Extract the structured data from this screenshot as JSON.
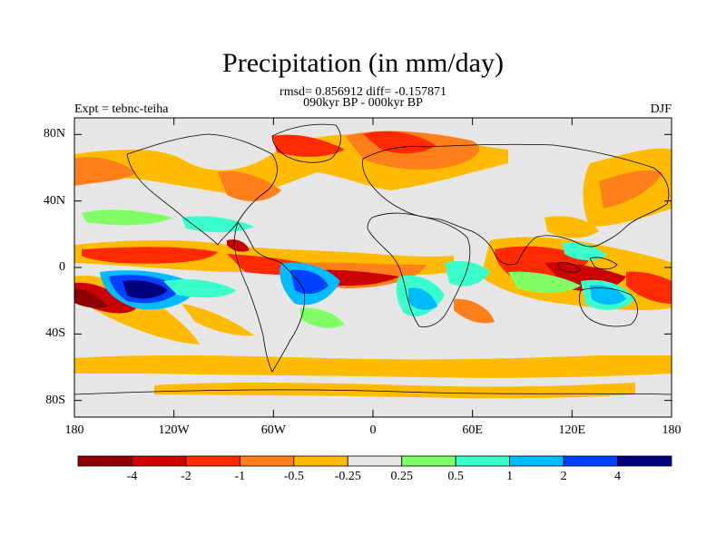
{
  "map": {
    "title": "Precipitation (in mm/day)",
    "stats_line": "rmsd= 0.856912 diff= -0.157871",
    "period_line": "090kyr BP - 000kyr BP",
    "experiment_label": "Expt = tebnc-teiha",
    "season_label": "DJF",
    "lat_ticks": [
      "80N",
      "40N",
      "0",
      "40S",
      "80S"
    ],
    "lat_values": [
      80,
      40,
      0,
      -40,
      -80
    ],
    "lon_ticks": [
      "180",
      "120W",
      "60W",
      "0",
      "60E",
      "120E",
      "180"
    ],
    "lon_values": [
      -180,
      -120,
      -60,
      0,
      60,
      120,
      180
    ],
    "lat_range": [
      -90,
      90
    ],
    "lon_range": [
      -180,
      180
    ]
  },
  "colorbar": {
    "colors": [
      "#8b0000",
      "#cc0000",
      "#ff2a00",
      "#ff7f1a",
      "#ffbb00",
      "#e6e6e6",
      "#80ff66",
      "#3affcc",
      "#00bbff",
      "#0040ff",
      "#00007f"
    ],
    "labels": [
      "-4",
      "-2",
      "-1",
      "-0.5",
      "-0.25",
      "0.25",
      "0.5",
      "1",
      "2",
      "4"
    ]
  }
}
